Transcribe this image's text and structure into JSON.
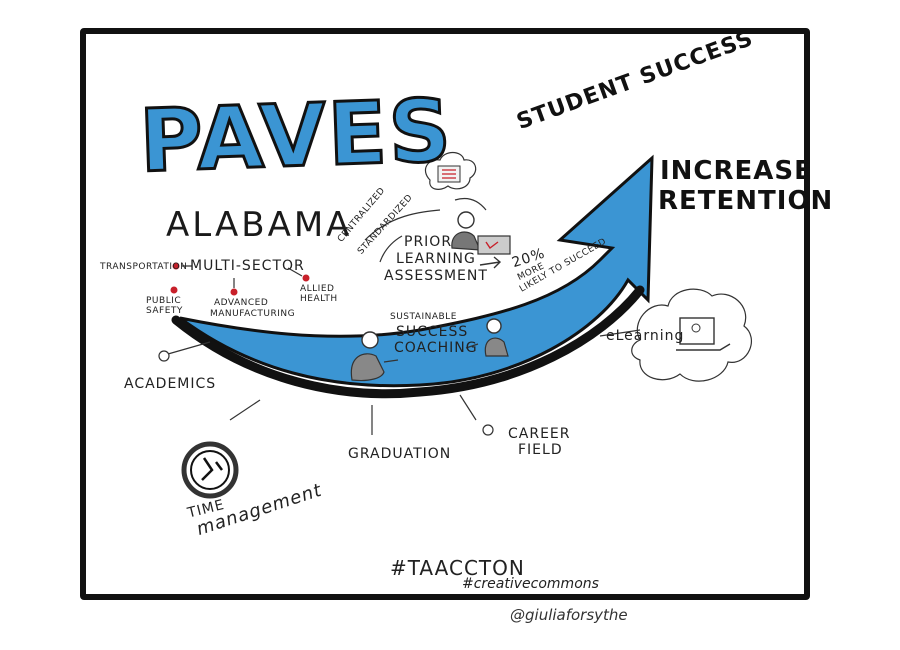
{
  "title": "PAVES",
  "subtitle": "ALABAMA",
  "labels": {
    "student_success": "STUDENT SUCCESS",
    "increase": "INCREASE",
    "retention": "RETENTION",
    "centralized": "CENTRALIZED",
    "standardized": "STANDARDIZED",
    "prior": "PRIOR",
    "learning": "LEARNING",
    "assessment": "ASSESSMENT",
    "pct_20": "20%",
    "more": "MORE",
    "likely": "LIKELY TO SUCCEED",
    "multi_sector": "MULTI-SECTOR",
    "transportation": "TRANSPORTATION",
    "public": "PUBLIC",
    "safety": "SAFETY",
    "advanced": "ADVANCED",
    "manufacturing": "MANUFACTURING",
    "allied": "ALLIED",
    "health": "HEALTH",
    "sustainable": "SUSTAINABLE",
    "success": "SUCCESS",
    "coaching": "COACHING",
    "elearning": "eLearning",
    "academics": "ACADEMICS",
    "graduation": "GRADUATION",
    "career": "CAREER",
    "field": "FIELD",
    "time": "TIME",
    "management": "management"
  },
  "hashtags": {
    "taaccton": "#TAACCTON",
    "creative": "#creativecommons"
  },
  "handle": "@giuliaforsythe",
  "colors": {
    "arrow_blue": "#3b95d3",
    "accent_red": "#c8202a",
    "ink": "#111111"
  }
}
